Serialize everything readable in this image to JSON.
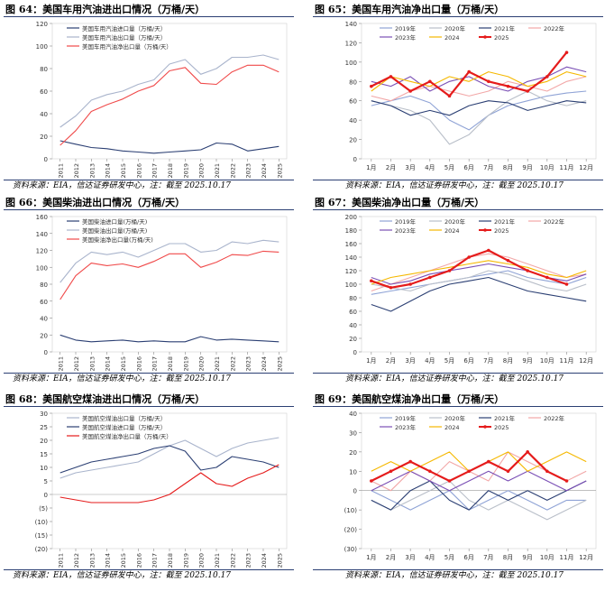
{
  "panels": [
    {
      "title": "图 64：美国车用汽油进出口情况（万桶/天）",
      "source": "资料来源：EIA，信达证券研发中心，注：截至 2025.10.17"
    },
    {
      "title": "图 65：美国车用汽油净出口量（万桶/天）",
      "source": "资料来源：EIA，信达证券研发中心，注：截至 2025.10.17"
    },
    {
      "title": "图 66：美国柴油进出口情况（万桶/天）",
      "source": "资料来源：EIA，信达证券研发中心，注：截至 2025.10.17"
    },
    {
      "title": "图 67：美国柴油净出口量（万桶/天）",
      "source": "资料来源：EIA，信达证券研发中心，注：截至 2025.10.17"
    },
    {
      "title": "图 68：美国航空煤油进出口情况（万桶/天）",
      "source": "资料来源：EIA，信达证券研发中心，注：截至 2025.10.17"
    },
    {
      "title": "图 69：美国航空煤油净出口量（万桶/天）",
      "source": "资料来源：EIA，信达证券研发中心，注：截至 2025.10.17"
    }
  ],
  "chart_data": [
    {
      "type": "line",
      "ylim": [
        0,
        120
      ],
      "yticks": [
        0,
        20,
        40,
        60,
        80,
        100,
        120
      ],
      "xticks": [
        "2011",
        "2012",
        "2013",
        "2014",
        "2015",
        "2016",
        "2017",
        "2018",
        "2019",
        "2020",
        "2021",
        "2022",
        "2023",
        "2024",
        "2025"
      ],
      "series": [
        {
          "name": "美国车用汽油进口量（万桶/天）",
          "color": "#2b3f73",
          "values": [
            16,
            13,
            10,
            9,
            7,
            6,
            5,
            6,
            7,
            8,
            14,
            13,
            7,
            9,
            11
          ]
        },
        {
          "name": "美国车用汽油出口量（万桶/天）",
          "color": "#a9b4cc",
          "values": [
            28,
            38,
            52,
            57,
            60,
            66,
            70,
            84,
            88,
            75,
            80,
            90,
            90,
            92,
            88
          ]
        },
        {
          "name": "美国车用汽油净出口量（万桶/天）",
          "color": "#f04a4a",
          "values": [
            12,
            25,
            42,
            48,
            53,
            60,
            65,
            78,
            81,
            67,
            66,
            77,
            83,
            83,
            77
          ]
        }
      ]
    },
    {
      "type": "line",
      "ylim": [
        0,
        140
      ],
      "yticks": [
        0,
        20,
        40,
        60,
        80,
        100,
        120,
        140
      ],
      "xticks": [
        "1月",
        "2月",
        "3月",
        "4月",
        "5月",
        "6月",
        "7月",
        "8月",
        "9月",
        "10月",
        "11月",
        "12月"
      ],
      "series": [
        {
          "name": "2019年",
          "color": "#8fa3d6",
          "values": [
            55,
            60,
            65,
            58,
            40,
            30,
            45,
            55,
            60,
            65,
            68,
            70
          ]
        },
        {
          "name": "2020年",
          "color": "#b9bfc9",
          "values": [
            60,
            55,
            50,
            40,
            15,
            25,
            45,
            60,
            70,
            60,
            55,
            60
          ]
        },
        {
          "name": "2021年",
          "color": "#2b3f73",
          "values": [
            60,
            55,
            45,
            50,
            45,
            55,
            60,
            58,
            50,
            55,
            60,
            58
          ]
        },
        {
          "name": "2022年",
          "color": "#f2a7a7",
          "values": [
            65,
            60,
            70,
            75,
            70,
            65,
            70,
            80,
            75,
            70,
            80,
            85
          ]
        },
        {
          "name": "2023年",
          "color": "#7a4fb5",
          "values": [
            80,
            75,
            85,
            70,
            80,
            85,
            75,
            70,
            80,
            85,
            95,
            90
          ]
        },
        {
          "name": "2024",
          "color": "#f5b800",
          "values": [
            70,
            85,
            80,
            75,
            85,
            80,
            90,
            85,
            75,
            80,
            90,
            85
          ]
        },
        {
          "name": "2025",
          "color": "#e51b1b",
          "values": [
            75,
            85,
            70,
            80,
            65,
            90,
            80,
            75,
            70,
            85,
            110,
            null
          ]
        }
      ]
    },
    {
      "type": "line",
      "ylim": [
        0,
        160
      ],
      "yticks": [
        0,
        20,
        40,
        60,
        80,
        100,
        120,
        140,
        160
      ],
      "xticks": [
        "2011",
        "2012",
        "2013",
        "2014",
        "2015",
        "2016",
        "2017",
        "2018",
        "2019",
        "2020",
        "2021",
        "2022",
        "2023",
        "2024",
        "2025"
      ],
      "series": [
        {
          "name": "美国柴油进口量(万桶/天)",
          "color": "#2b3f73",
          "values": [
            20,
            14,
            12,
            13,
            14,
            12,
            13,
            12,
            12,
            18,
            14,
            15,
            14,
            13,
            12
          ]
        },
        {
          "name": "美国柴油出口量(万桶/天)",
          "color": "#a9b4cc",
          "values": [
            82,
            105,
            118,
            115,
            118,
            112,
            120,
            128,
            128,
            118,
            120,
            130,
            128,
            132,
            130
          ]
        },
        {
          "name": "美国柴油净出口量(万桶/天)",
          "color": "#f04a4a",
          "values": [
            62,
            90,
            105,
            102,
            104,
            100,
            107,
            116,
            116,
            100,
            106,
            115,
            114,
            119,
            118
          ]
        }
      ]
    },
    {
      "type": "line",
      "ylim": [
        0,
        200
      ],
      "yticks": [
        0,
        20,
        40,
        60,
        80,
        100,
        120,
        140,
        160,
        180,
        200
      ],
      "xticks": [
        "1月",
        "2月",
        "3月",
        "4月",
        "5月",
        "6月",
        "7月",
        "8月",
        "9月",
        "10月",
        "11月",
        "12月"
      ],
      "series": [
        {
          "name": "2019年",
          "color": "#8fa3d6",
          "values": [
            85,
            90,
            95,
            100,
            105,
            110,
            115,
            120,
            110,
            105,
            100,
            110
          ]
        },
        {
          "name": "2020年",
          "color": "#b9bfc9",
          "values": [
            100,
            95,
            90,
            100,
            105,
            110,
            120,
            115,
            105,
            95,
            90,
            100
          ]
        },
        {
          "name": "2021年",
          "color": "#2b3f73",
          "values": [
            70,
            60,
            75,
            90,
            100,
            105,
            110,
            100,
            90,
            85,
            80,
            75
          ]
        },
        {
          "name": "2022年",
          "color": "#f2a7a7",
          "values": [
            90,
            100,
            110,
            120,
            130,
            140,
            145,
            140,
            130,
            120,
            110,
            115
          ]
        },
        {
          "name": "2023年",
          "color": "#7a4fb5",
          "values": [
            110,
            100,
            105,
            115,
            120,
            125,
            130,
            125,
            120,
            110,
            105,
            115
          ]
        },
        {
          "name": "2024",
          "color": "#f5b800",
          "values": [
            100,
            110,
            115,
            120,
            125,
            130,
            135,
            130,
            125,
            115,
            110,
            120
          ]
        },
        {
          "name": "2025",
          "color": "#e51b1b",
          "values": [
            105,
            95,
            100,
            110,
            120,
            140,
            150,
            135,
            120,
            110,
            100,
            null
          ]
        }
      ]
    },
    {
      "type": "line",
      "ylim": [
        -20,
        30
      ],
      "yticks": [
        -20,
        -15,
        -10,
        -5,
        0,
        5,
        10,
        15,
        20,
        25,
        30
      ],
      "xticks": [
        "2011",
        "2012",
        "2013",
        "2014",
        "2015",
        "2016",
        "2017",
        "2018",
        "2019",
        "2020",
        "2021",
        "2022",
        "2023",
        "2024",
        "2025"
      ],
      "series": [
        {
          "name": "美国航空煤油出口量（万桶/天）",
          "color": "#a9b4cc",
          "values": [
            6,
            8,
            9,
            10,
            11,
            12,
            15,
            18,
            20,
            17,
            14,
            17,
            19,
            20,
            21
          ]
        },
        {
          "name": "美国航空煤油进口量（万桶/天）",
          "color": "#2b3f73",
          "values": [
            8,
            10,
            12,
            13,
            14,
            15,
            17,
            18,
            16,
            9,
            10,
            14,
            13,
            12,
            10
          ]
        },
        {
          "name": "美国航空煤油净出口量（万桶/天）",
          "color": "#e51b1b",
          "values": [
            -1,
            -2,
            -3,
            -3,
            -3,
            -3,
            -2,
            0,
            4,
            8,
            4,
            3,
            6,
            8,
            11
          ]
        }
      ]
    },
    {
      "type": "line",
      "ylim": [
        -30,
        40
      ],
      "yticks": [
        -30,
        -20,
        -10,
        0,
        10,
        20,
        30,
        40
      ],
      "xticks": [
        "1月",
        "2月",
        "3月",
        "4月",
        "5月",
        "6月",
        "7月",
        "8月",
        "9月",
        "10月",
        "11月",
        "12月"
      ],
      "series": [
        {
          "name": "2019年",
          "color": "#8fa3d6",
          "values": [
            0,
            -5,
            -10,
            -5,
            0,
            -10,
            -5,
            0,
            -5,
            -10,
            -5,
            -5
          ]
        },
        {
          "name": "2020年",
          "color": "#b9bfc9",
          "values": [
            -5,
            -10,
            -5,
            0,
            5,
            -5,
            -10,
            -5,
            -10,
            -15,
            -10,
            -5
          ]
        },
        {
          "name": "2021年",
          "color": "#2b3f73",
          "values": [
            -5,
            -10,
            0,
            5,
            -5,
            -10,
            0,
            -5,
            0,
            -5,
            0,
            5
          ]
        },
        {
          "name": "2022年",
          "color": "#f2a7a7",
          "values": [
            5,
            0,
            10,
            5,
            15,
            10,
            5,
            20,
            15,
            10,
            5,
            10
          ]
        },
        {
          "name": "2023年",
          "color": "#7a4fb5",
          "values": [
            0,
            5,
            10,
            5,
            0,
            5,
            10,
            5,
            10,
            5,
            0,
            5
          ]
        },
        {
          "name": "2024",
          "color": "#f5b800",
          "values": [
            10,
            15,
            10,
            15,
            20,
            10,
            15,
            20,
            10,
            15,
            20,
            15
          ]
        },
        {
          "name": "2025",
          "color": "#e51b1b",
          "values": [
            5,
            10,
            15,
            10,
            5,
            10,
            15,
            10,
            20,
            10,
            5,
            null
          ]
        }
      ]
    }
  ]
}
